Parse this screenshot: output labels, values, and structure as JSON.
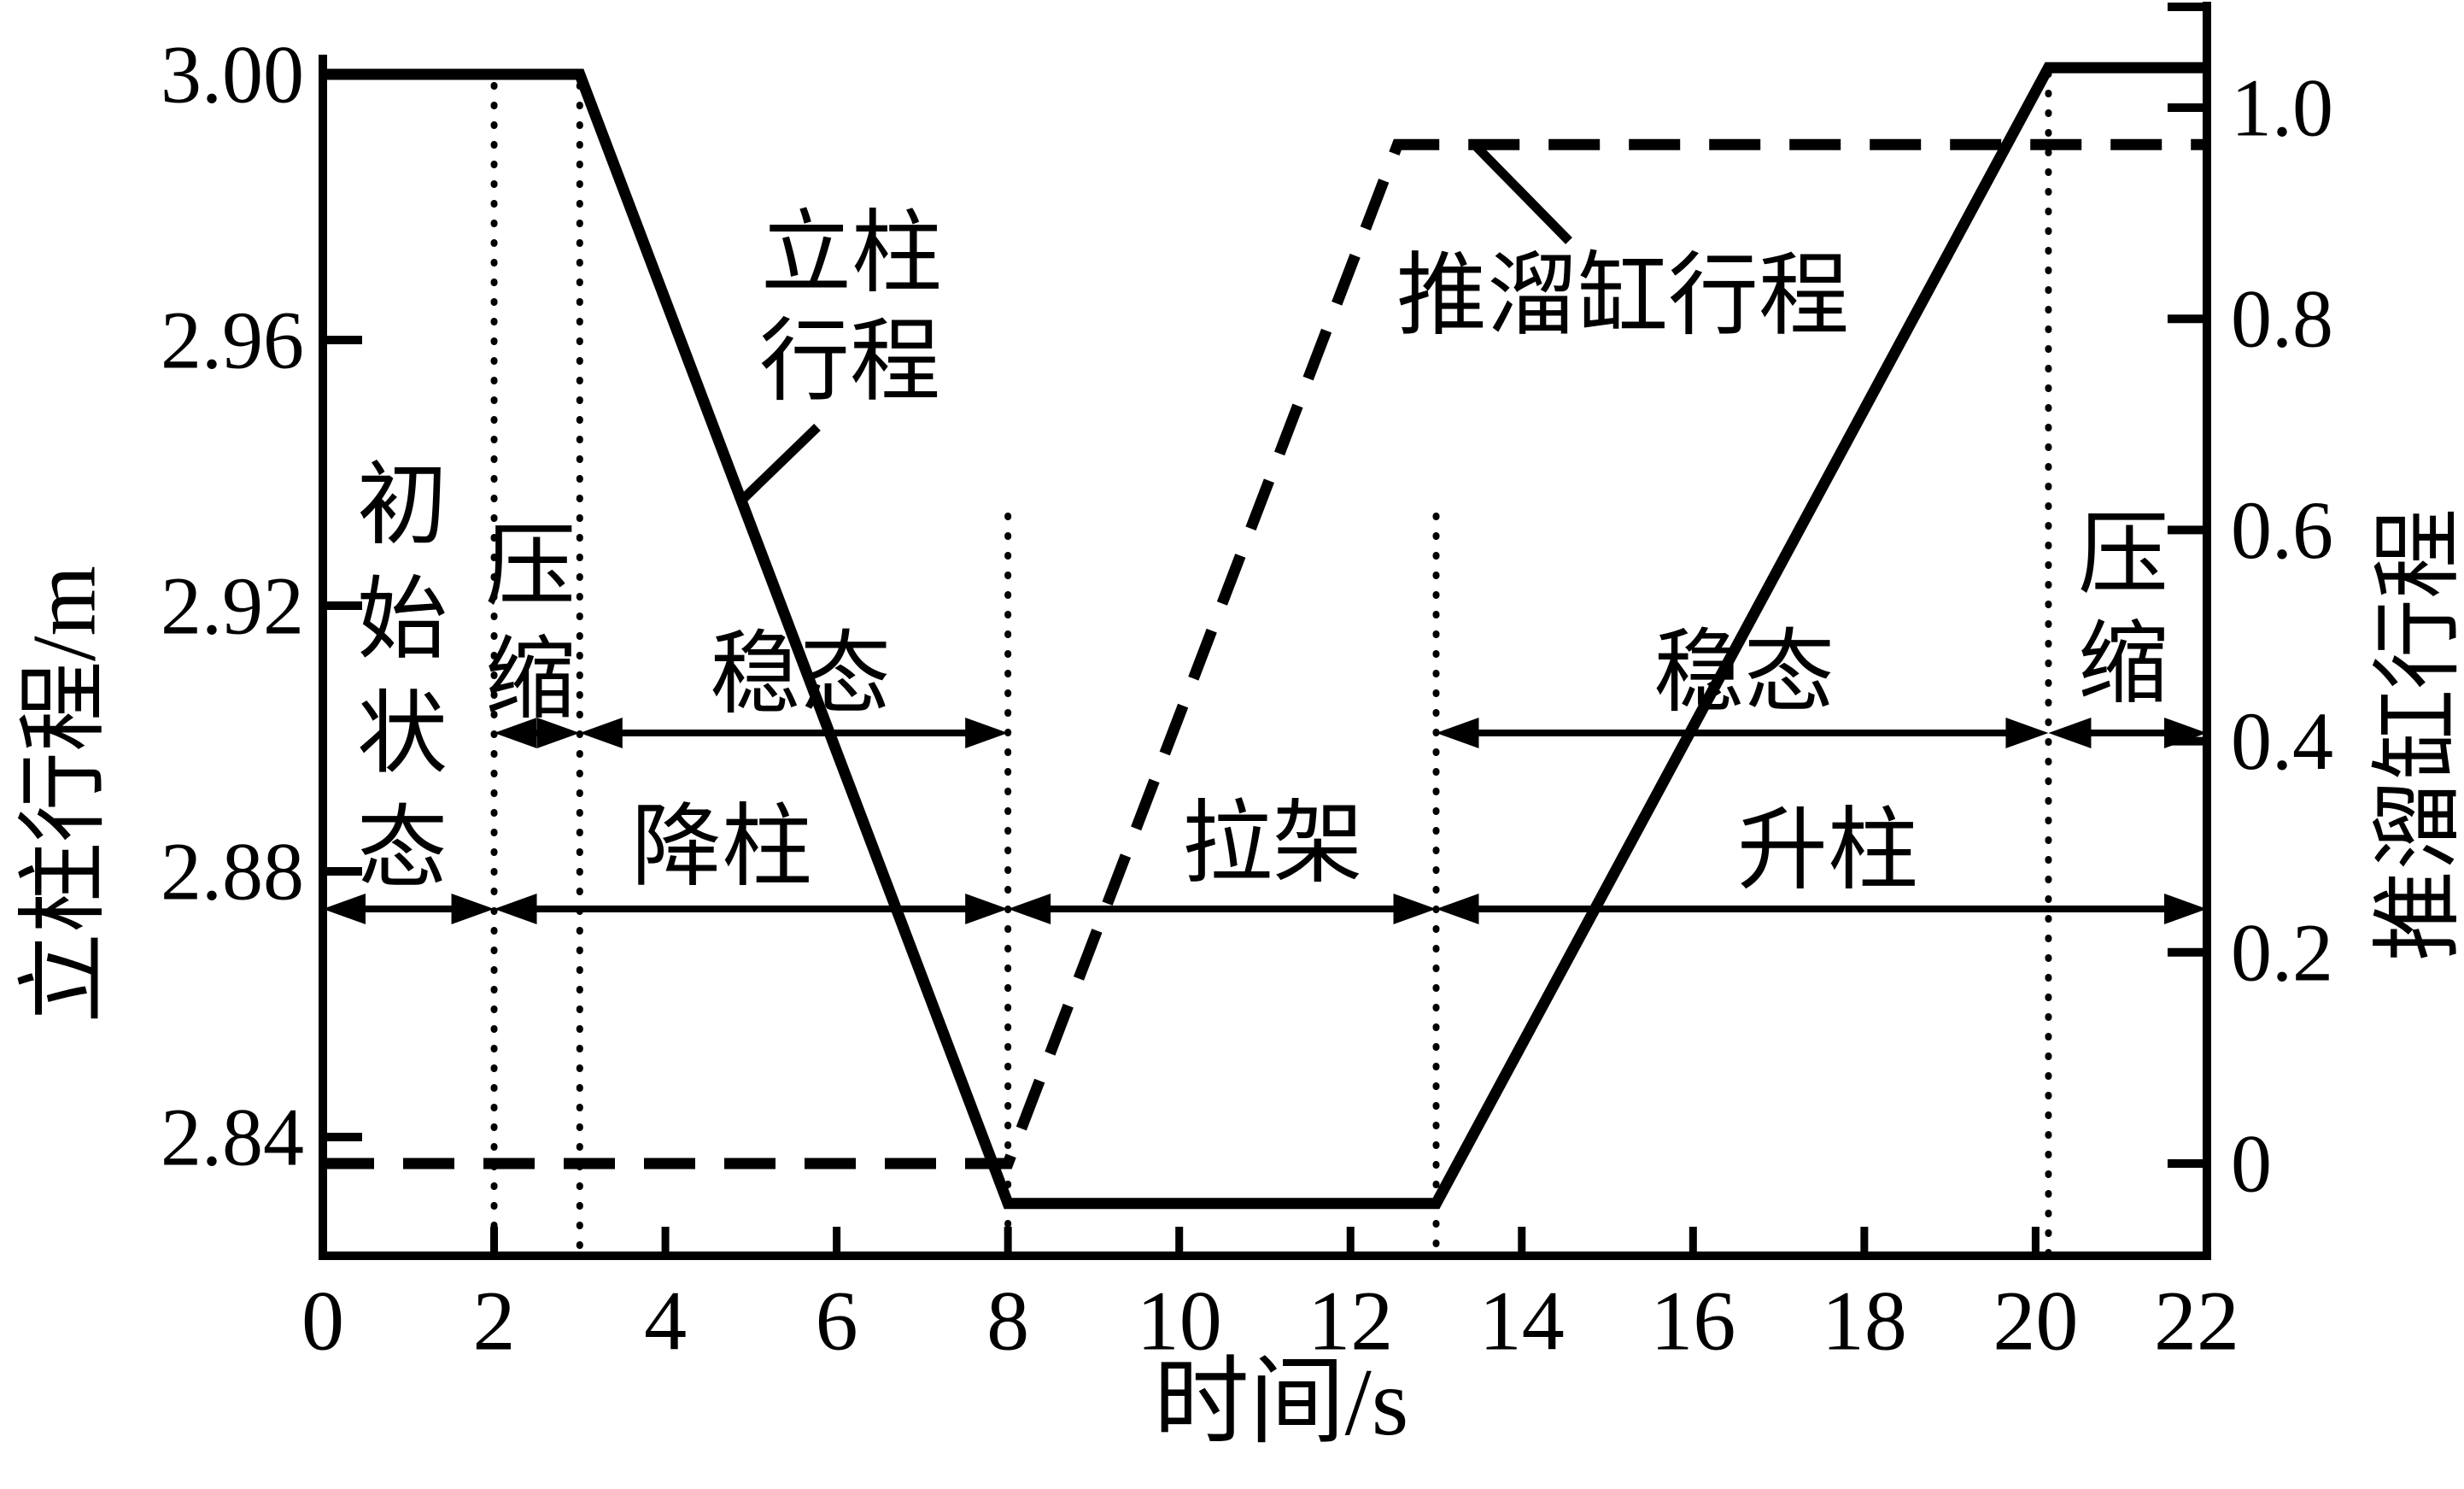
{
  "page": {
    "background": "#ffffff",
    "ink": "#000000"
  },
  "chart_data": {
    "type": "line",
    "title": "",
    "xlabel": "时间/s",
    "x_range": [
      0,
      22
    ],
    "x_ticks": [
      "0",
      "2",
      "4",
      "6",
      "8",
      "10",
      "12",
      "14",
      "16",
      "18",
      "20",
      "22"
    ],
    "x_tick_values": [
      0,
      2,
      4,
      6,
      8,
      10,
      12,
      14,
      16,
      18,
      20,
      22
    ],
    "left_axis": {
      "title": "立柱行程/m",
      "ticks": [
        "3.00",
        "2.96",
        "2.92",
        "2.88",
        "2.84"
      ],
      "tick_values": [
        3.0,
        2.96,
        2.92,
        2.88,
        2.84
      ],
      "range": [
        2.822,
        3.008
      ]
    },
    "right_axis": {
      "title": "推溜缸行程",
      "ticks": [
        "1.0",
        "0.8",
        "0.6",
        "0.4",
        "0.2",
        "0"
      ],
      "tick_values": [
        1.0,
        0.8,
        0.6,
        0.4,
        0.2,
        0
      ],
      "range": [
        -0.09,
        1.1
      ]
    },
    "series": [
      {
        "name": "立柱行程",
        "axis": "left",
        "line": "solid",
        "points": [
          [
            0,
            3.0
          ],
          [
            3,
            3.0
          ],
          [
            8,
            2.83
          ],
          [
            13,
            2.83
          ],
          [
            20.15,
            3.001
          ],
          [
            22,
            3.001
          ]
        ]
      },
      {
        "name": "推溜缸行程",
        "axis": "right",
        "line": "dashed",
        "points": [
          [
            0,
            0
          ],
          [
            8,
            0
          ],
          [
            12.55,
            0.965
          ],
          [
            22,
            0.965
          ]
        ]
      }
    ],
    "guide_lines": {
      "vertical_dotted_x": [
        2,
        3,
        8,
        13,
        20.15
      ]
    },
    "grid": "off",
    "phase_rows": [
      {
        "row": "upper",
        "spans": [
          {
            "label": "压缩",
            "from": 2,
            "to": 3
          },
          {
            "label": "稳态",
            "from": 3,
            "to": 8
          },
          {
            "label": "稳态",
            "from": 13,
            "to": 20.15
          },
          {
            "label": "压缩",
            "from": 20.15,
            "to": 22
          }
        ]
      },
      {
        "row": "lower",
        "spans": [
          {
            "label": "初始状态",
            "from": 0,
            "to": 2
          },
          {
            "label": "降柱",
            "from": 2,
            "to": 8
          },
          {
            "label": "拉架",
            "from": 8,
            "to": 13
          },
          {
            "label": "升柱",
            "from": 13,
            "to": 22
          }
        ]
      }
    ]
  },
  "phases": {
    "initial": "初始状态",
    "compress": "压缩",
    "steady": "稳态",
    "lower": "降柱",
    "pull": "拉架",
    "raise": "升柱"
  },
  "curve_labels": {
    "solid_lines": [
      "立柱",
      "行程"
    ],
    "dashed_lines": [
      "推溜缸行程"
    ]
  }
}
